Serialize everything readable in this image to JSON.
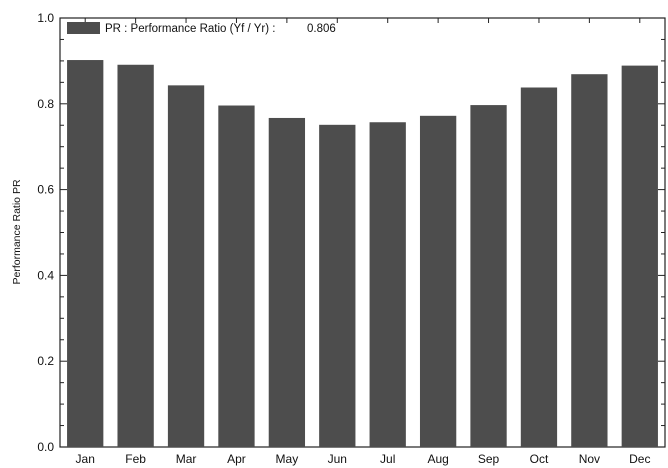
{
  "chart_data": {
    "type": "bar",
    "title": "",
    "xlabel": "",
    "ylabel": "Performance Ratio PR",
    "categories": [
      "Jan",
      "Feb",
      "Mar",
      "Apr",
      "May",
      "Jun",
      "Jul",
      "Aug",
      "Sep",
      "Oct",
      "Nov",
      "Dec"
    ],
    "series": [
      {
        "name": "PR : Performance Ratio (Yf / Yr) :",
        "summary_value": "0.806",
        "values": [
          0.902,
          0.891,
          0.843,
          0.796,
          0.767,
          0.751,
          0.757,
          0.772,
          0.797,
          0.838,
          0.869,
          0.889
        ]
      }
    ],
    "ylim": [
      0.0,
      1.0
    ],
    "yticks": [
      "0.0",
      "0.2",
      "0.4",
      "0.6",
      "0.8",
      "1.0"
    ],
    "grid": false,
    "legend_position": "top-left",
    "colors": {
      "bar": "#4d4d4d",
      "axis": "#222222"
    }
  }
}
